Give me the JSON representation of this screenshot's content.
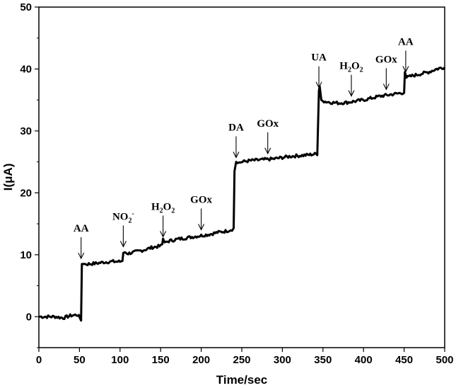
{
  "chart_data": {
    "type": "line",
    "title": "",
    "xlabel": "Time/sec",
    "ylabel": "I(μA)",
    "xlim": [
      0,
      500
    ],
    "ylim": [
      -5,
      50
    ],
    "xticks": [
      0,
      50,
      100,
      150,
      200,
      250,
      300,
      350,
      400,
      450,
      500
    ],
    "yticks": [
      0,
      10,
      20,
      30,
      40,
      50
    ],
    "grid": false,
    "legend": "none",
    "line_color": "#000000",
    "series": [
      {
        "x": [
          0,
          10,
          20,
          30,
          40,
          48,
          52,
          53,
          55,
          60,
          70,
          80,
          90,
          100,
          103,
          104,
          106,
          110,
          120,
          130,
          140,
          150,
          152,
          153,
          155,
          160,
          170,
          180,
          190,
          200,
          210,
          220,
          230,
          238,
          240,
          241,
          243,
          245,
          250,
          260,
          270,
          280,
          290,
          300,
          310,
          320,
          330,
          343,
          345,
          346,
          348,
          350,
          360,
          370,
          380,
          390,
          400,
          410,
          420,
          430,
          440,
          450,
          451,
          453,
          460,
          470,
          480,
          490,
          500
        ],
        "y": [
          0,
          0,
          0,
          -0.2,
          0.2,
          0.3,
          -0.5,
          8.5,
          8.5,
          8.5,
          8.6,
          8.8,
          8.9,
          8.9,
          9.0,
          10.3,
          10.4,
          10.2,
          10.5,
          10.8,
          11.2,
          11.4,
          11.7,
          12.6,
          12.0,
          12.2,
          12.5,
          12.7,
          12.9,
          13.1,
          13.3,
          13.6,
          13.8,
          14.1,
          14.3,
          23.5,
          25.0,
          24.8,
          25.0,
          25.2,
          25.3,
          25.4,
          25.5,
          25.7,
          25.9,
          26.0,
          26.1,
          26.3,
          36.5,
          37.2,
          35.0,
          34.8,
          34.6,
          34.5,
          34.6,
          34.8,
          35.0,
          35.3,
          35.6,
          35.8,
          36.0,
          36.2,
          39.5,
          38.6,
          38.9,
          39.2,
          39.5,
          40.0,
          40.3
        ]
      }
    ],
    "annotations": [
      {
        "label": "AA",
        "x": 52
      },
      {
        "label": "NO2-",
        "x": 104
      },
      {
        "label": "H2O2",
        "x": 153
      },
      {
        "label": "GOx",
        "x": 200
      },
      {
        "label": "DA",
        "x": 243
      },
      {
        "label": "GOx",
        "x": 282
      },
      {
        "label": "UA",
        "x": 345
      },
      {
        "label": "H2O2",
        "x": 385
      },
      {
        "label": "GOx",
        "x": 428
      },
      {
        "label": "AA",
        "x": 452
      }
    ]
  }
}
